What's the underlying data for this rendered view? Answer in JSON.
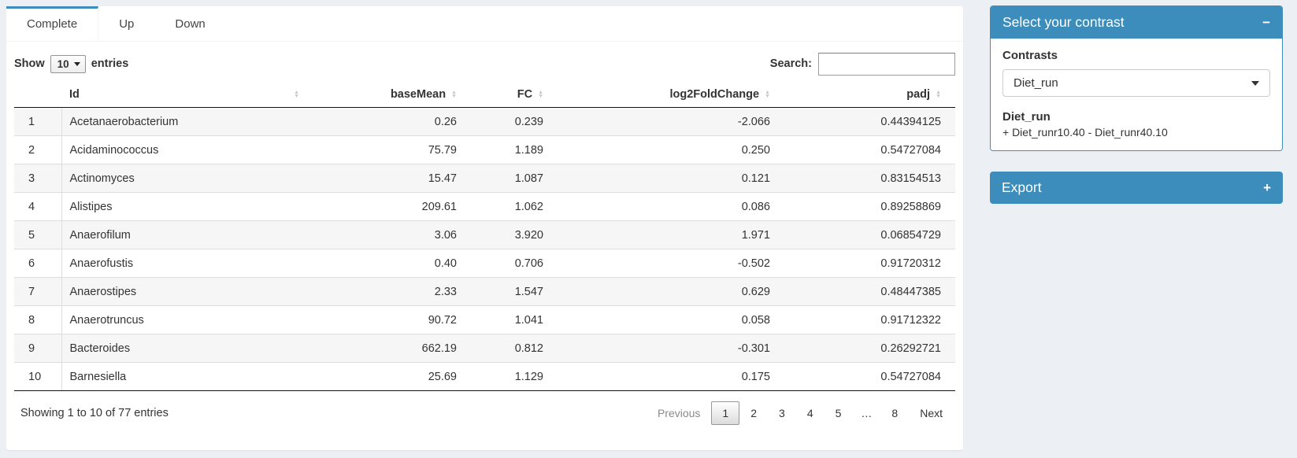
{
  "colors": {
    "accent": "#3c8dbc",
    "page_bg": "#ecf0f5"
  },
  "tabs": [
    {
      "label": "Complete",
      "active": true
    },
    {
      "label": "Up",
      "active": false
    },
    {
      "label": "Down",
      "active": false
    }
  ],
  "length_control": {
    "label_before": "Show",
    "selected": "10",
    "label_after": "entries"
  },
  "search": {
    "label": "Search:",
    "value": ""
  },
  "table": {
    "columns": [
      "",
      "Id",
      "baseMean",
      "FC",
      "log2FoldChange",
      "padj"
    ],
    "sortable": [
      false,
      true,
      true,
      true,
      true,
      true
    ],
    "rows": [
      [
        "1",
        "Acetanaerobacterium",
        "0.26",
        "0.239",
        "-2.066",
        "0.44394125"
      ],
      [
        "2",
        "Acidaminococcus",
        "75.79",
        "1.189",
        "0.250",
        "0.54727084"
      ],
      [
        "3",
        "Actinomyces",
        "15.47",
        "1.087",
        "0.121",
        "0.83154513"
      ],
      [
        "4",
        "Alistipes",
        "209.61",
        "1.062",
        "0.086",
        "0.89258869"
      ],
      [
        "5",
        "Anaerofilum",
        "3.06",
        "3.920",
        "1.971",
        "0.06854729"
      ],
      [
        "6",
        "Anaerofustis",
        "0.40",
        "0.706",
        "-0.502",
        "0.91720312"
      ],
      [
        "7",
        "Anaerostipes",
        "2.33",
        "1.547",
        "0.629",
        "0.48447385"
      ],
      [
        "8",
        "Anaerotruncus",
        "90.72",
        "1.041",
        "0.058",
        "0.91712322"
      ],
      [
        "9",
        "Bacteroides",
        "662.19",
        "0.812",
        "-0.301",
        "0.26292721"
      ],
      [
        "10",
        "Barnesiella",
        "25.69",
        "1.129",
        "0.175",
        "0.54727084"
      ]
    ]
  },
  "footer": {
    "info": "Showing 1 to 10 of 77 entries",
    "pagination": [
      {
        "label": "Previous",
        "state": "disabled"
      },
      {
        "label": "1",
        "state": "current"
      },
      {
        "label": "2",
        "state": "normal"
      },
      {
        "label": "3",
        "state": "normal"
      },
      {
        "label": "4",
        "state": "normal"
      },
      {
        "label": "5",
        "state": "normal"
      },
      {
        "label": "…",
        "state": "ellipsis"
      },
      {
        "label": "8",
        "state": "normal"
      },
      {
        "label": "Next",
        "state": "normal"
      }
    ]
  },
  "contrast_panel": {
    "title": "Select your contrast",
    "collapse_icon": "−",
    "section_label": "Contrasts",
    "dropdown_value": "Diet_run",
    "detail_title": "Diet_run",
    "detail_formula": "+ Diet_runr10.40 - Diet_runr40.10"
  },
  "export_panel": {
    "title": "Export",
    "collapse_icon": "+"
  }
}
